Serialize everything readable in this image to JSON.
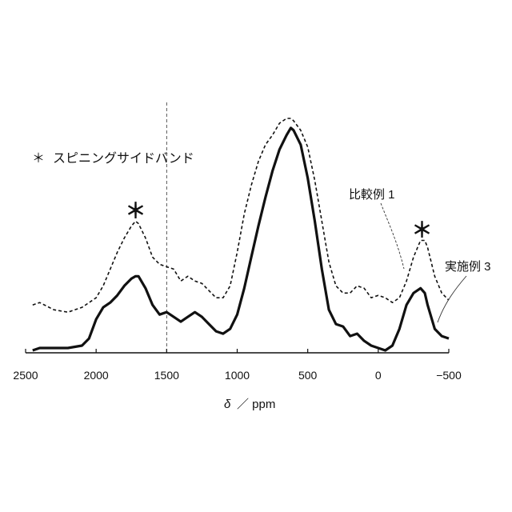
{
  "chart_data": {
    "type": "line",
    "xlabel_symbol": "δ",
    "xlabel_unit": "／ ppm",
    "xlim": [
      2500,
      -500
    ],
    "x_reversed": true,
    "grid": false,
    "x_ticks": [
      2500,
      2000,
      1500,
      1000,
      500,
      0,
      -500
    ],
    "x_tick_labels": [
      "2500",
      "2000",
      "1500",
      "1000",
      "500",
      "0",
      "−500"
    ],
    "reference_line_x": 1500,
    "legend": {
      "symbol": "＊",
      "text": "スピニングサイドバンド"
    },
    "annotations": [
      {
        "text": "＊",
        "x": 1720,
        "label_of": "sideband"
      },
      {
        "text": "＊",
        "x": -310,
        "label_of": "sideband"
      }
    ],
    "series": [
      {
        "name": "比較例 1",
        "style": "dashed",
        "x": [
          2450,
          2400,
          2300,
          2200,
          2100,
          2000,
          1950,
          1900,
          1850,
          1800,
          1750,
          1720,
          1700,
          1650,
          1600,
          1550,
          1500,
          1450,
          1400,
          1350,
          1300,
          1250,
          1200,
          1150,
          1100,
          1050,
          1000,
          950,
          900,
          850,
          800,
          750,
          700,
          650,
          620,
          600,
          550,
          500,
          450,
          400,
          350,
          300,
          250,
          200,
          150,
          100,
          50,
          0,
          -50,
          -100,
          -150,
          -200,
          -250,
          -300,
          -330,
          -350,
          -400,
          -450,
          -500
        ],
        "y": [
          0.2,
          0.21,
          0.18,
          0.17,
          0.19,
          0.23,
          0.28,
          0.35,
          0.42,
          0.48,
          0.53,
          0.55,
          0.54,
          0.48,
          0.4,
          0.37,
          0.36,
          0.35,
          0.3,
          0.32,
          0.3,
          0.29,
          0.26,
          0.23,
          0.23,
          0.28,
          0.42,
          0.58,
          0.7,
          0.8,
          0.87,
          0.91,
          0.96,
          0.98,
          0.98,
          0.97,
          0.93,
          0.86,
          0.72,
          0.55,
          0.38,
          0.28,
          0.25,
          0.25,
          0.28,
          0.27,
          0.23,
          0.24,
          0.23,
          0.21,
          0.23,
          0.3,
          0.4,
          0.47,
          0.47,
          0.44,
          0.32,
          0.25,
          0.22
        ]
      },
      {
        "name": "実施例 3",
        "style": "solid",
        "x": [
          2450,
          2400,
          2300,
          2200,
          2100,
          2050,
          2000,
          1950,
          1900,
          1850,
          1800,
          1750,
          1720,
          1700,
          1650,
          1600,
          1550,
          1500,
          1450,
          1400,
          1350,
          1300,
          1250,
          1200,
          1150,
          1100,
          1050,
          1000,
          950,
          900,
          850,
          800,
          750,
          700,
          650,
          620,
          600,
          550,
          500,
          450,
          400,
          350,
          300,
          250,
          200,
          150,
          100,
          50,
          0,
          -50,
          -100,
          -150,
          -200,
          -250,
          -300,
          -330,
          -350,
          -400,
          -450,
          -500
        ],
        "y": [
          0.01,
          0.02,
          0.02,
          0.02,
          0.03,
          0.06,
          0.14,
          0.19,
          0.21,
          0.24,
          0.28,
          0.31,
          0.32,
          0.32,
          0.27,
          0.2,
          0.16,
          0.17,
          0.15,
          0.13,
          0.15,
          0.17,
          0.15,
          0.12,
          0.09,
          0.08,
          0.1,
          0.16,
          0.27,
          0.4,
          0.53,
          0.65,
          0.76,
          0.85,
          0.91,
          0.94,
          0.93,
          0.87,
          0.73,
          0.55,
          0.35,
          0.18,
          0.12,
          0.11,
          0.07,
          0.08,
          0.05,
          0.03,
          0.02,
          0.01,
          0.03,
          0.1,
          0.2,
          0.25,
          0.27,
          0.25,
          0.2,
          0.1,
          0.07,
          0.06
        ]
      }
    ]
  }
}
